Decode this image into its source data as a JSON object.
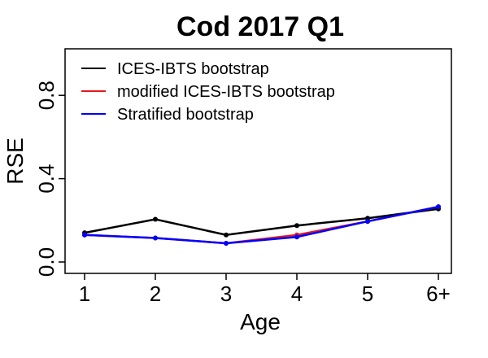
{
  "chart_data": {
    "type": "line",
    "title": "Cod 2017 Q1",
    "xlabel": "Age",
    "ylabel": "RSE",
    "categories": [
      "1",
      "2",
      "3",
      "4",
      "5",
      "6+"
    ],
    "ylim": [
      0,
      1
    ],
    "yticks": [
      "0.0",
      "0.4",
      "0.8"
    ],
    "yticks_values": [
      0,
      0.4,
      0.8
    ],
    "legend_position": "top-left",
    "series": [
      {
        "name": "ICES-IBTS bootstrap",
        "color": "#000000",
        "values": [
          0.14,
          0.205,
          0.13,
          0.175,
          0.21,
          0.255
        ]
      },
      {
        "name": "modified ICES-IBTS bootstrap",
        "color": "#e31a1c",
        "values": [
          0.13,
          0.115,
          0.09,
          0.13,
          0.195,
          0.265
        ]
      },
      {
        "name": "Stratified bootstrap",
        "color": "#0000ff",
        "values": [
          0.13,
          0.115,
          0.09,
          0.12,
          0.195,
          0.265
        ]
      }
    ]
  }
}
